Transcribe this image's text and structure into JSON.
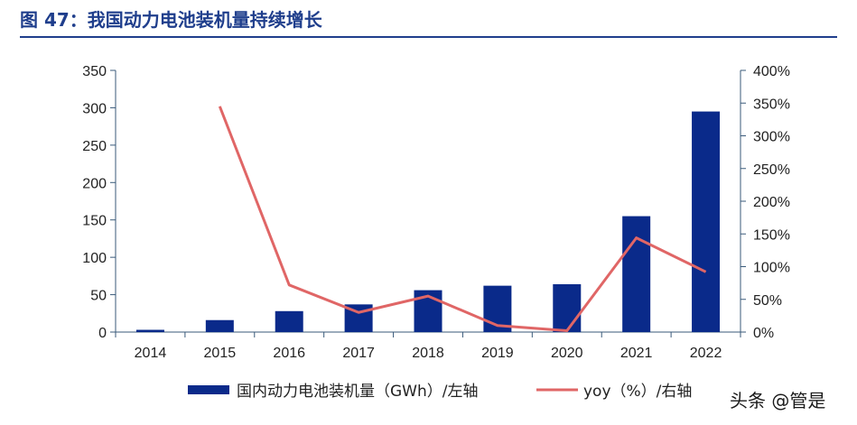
{
  "header": {
    "title": "图 47：我国动力电池装机量持续增长"
  },
  "watermark": "头条 @管是",
  "colors": {
    "bar": "#0a2a8a",
    "line": "#e06666",
    "axis": "#3a5a7a",
    "title": "#1f3e8c"
  },
  "chart_data": {
    "type": "bar",
    "categories": [
      "2014",
      "2015",
      "2016",
      "2017",
      "2018",
      "2019",
      "2020",
      "2021",
      "2022"
    ],
    "series": [
      {
        "name": "国内动力电池装机量（GWh）/左轴",
        "type": "bar",
        "axis": "left",
        "values": [
          3,
          16,
          28,
          37,
          56,
          62,
          64,
          155,
          295
        ]
      },
      {
        "name": "yoy（%）/右轴",
        "type": "line",
        "axis": "right",
        "values": [
          null,
          345,
          72,
          30,
          55,
          10,
          2,
          144,
          92
        ]
      }
    ],
    "yleft": {
      "min": 0,
      "max": 350,
      "ticks": [
        "0",
        "50",
        "100",
        "150",
        "200",
        "250",
        "300",
        "350"
      ]
    },
    "yright": {
      "min": 0,
      "max": 400,
      "ticks": [
        "0%",
        "50%",
        "100%",
        "150%",
        "200%",
        "250%",
        "300%",
        "350%",
        "400%"
      ]
    },
    "legend": "bottom"
  }
}
